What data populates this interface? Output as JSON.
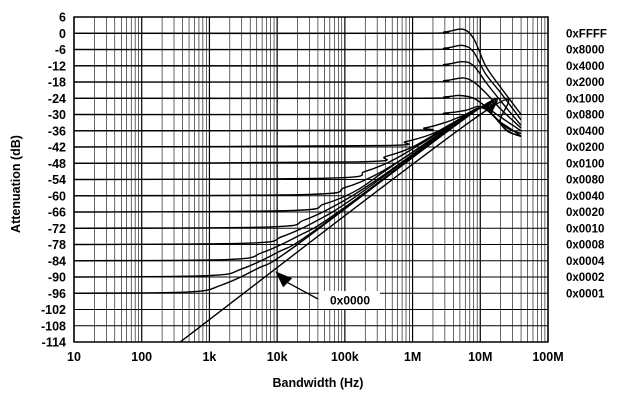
{
  "chart_data": {
    "type": "line",
    "title": "",
    "xlabel": "Bandwidth (Hz)",
    "ylabel": "Attenuation (dB)",
    "x_scale": "log",
    "xlim": [
      10,
      100000000
    ],
    "ylim": [
      -114,
      6
    ],
    "grid": true,
    "x_ticks": [
      {
        "value": 10,
        "label": "10"
      },
      {
        "value": 100,
        "label": "100"
      },
      {
        "value": 1000,
        "label": "1k"
      },
      {
        "value": 10000,
        "label": "10k"
      },
      {
        "value": 100000,
        "label": "100k"
      },
      {
        "value": 1000000,
        "label": "1M"
      },
      {
        "value": 10000000,
        "label": "10M"
      },
      {
        "value": 100000000,
        "label": "100M"
      }
    ],
    "y_ticks": [
      6,
      0,
      -6,
      -12,
      -18,
      -24,
      -30,
      -36,
      -42,
      -48,
      -54,
      -60,
      -66,
      -72,
      -78,
      -84,
      -90,
      -96,
      -102,
      -108,
      -114
    ],
    "series": [
      {
        "name": "0xFFFF",
        "values": [
          [
            10,
            0
          ],
          [
            1000000,
            0
          ],
          [
            3000000,
            0.5
          ],
          [
            5500000,
            1.5
          ],
          [
            8000000,
            -2
          ],
          [
            12000000,
            -12
          ],
          [
            20000000,
            -20
          ],
          [
            40000000,
            -30
          ]
        ]
      },
      {
        "name": "0x8000",
        "values": [
          [
            10,
            -6
          ],
          [
            1000000,
            -6
          ],
          [
            3000000,
            -5.5
          ],
          [
            5500000,
            -4.5
          ],
          [
            8000000,
            -7
          ],
          [
            12000000,
            -15
          ],
          [
            20000000,
            -22
          ],
          [
            40000000,
            -32
          ]
        ]
      },
      {
        "name": "0x4000",
        "values": [
          [
            10,
            -12
          ],
          [
            1000000,
            -12
          ],
          [
            3000000,
            -11.5
          ],
          [
            5500000,
            -10.5
          ],
          [
            8000000,
            -12
          ],
          [
            12000000,
            -18
          ],
          [
            20000000,
            -25
          ],
          [
            40000000,
            -34
          ]
        ]
      },
      {
        "name": "0x2000",
        "values": [
          [
            10,
            -18
          ],
          [
            1000000,
            -18
          ],
          [
            3000000,
            -17.5
          ],
          [
            5500000,
            -16.5
          ],
          [
            8000000,
            -18
          ],
          [
            12000000,
            -22
          ],
          [
            20000000,
            -28
          ],
          [
            40000000,
            -35
          ]
        ]
      },
      {
        "name": "0x1000",
        "values": [
          [
            10,
            -24
          ],
          [
            1000000,
            -24
          ],
          [
            3000000,
            -23.5
          ],
          [
            5000000,
            -23
          ],
          [
            8000000,
            -24
          ],
          [
            12000000,
            -27
          ],
          [
            20000000,
            -31
          ],
          [
            40000000,
            -36
          ]
        ]
      },
      {
        "name": "0x0800",
        "values": [
          [
            10,
            -30
          ],
          [
            1000000,
            -30
          ],
          [
            3000000,
            -29.5
          ],
          [
            6000000,
            -28.5
          ],
          [
            10000000,
            -27
          ],
          [
            15000000,
            -30
          ],
          [
            25000000,
            -35
          ],
          [
            40000000,
            -37
          ]
        ]
      },
      {
        "name": "0x0400",
        "values": [
          [
            10,
            -36
          ],
          [
            700000,
            -35.8
          ],
          [
            1500000,
            -35
          ],
          [
            3000000,
            -33
          ],
          [
            6000000,
            -30
          ],
          [
            10000000,
            -27.5
          ],
          [
            15000000,
            -30
          ],
          [
            25000000,
            -36
          ],
          [
            40000000,
            -38
          ]
        ]
      },
      {
        "name": "0x0200",
        "values": [
          [
            10,
            -42
          ],
          [
            300000,
            -41.5
          ],
          [
            800000,
            -40
          ],
          [
            2000000,
            -37
          ],
          [
            4000000,
            -33
          ],
          [
            10000000,
            -27.5
          ],
          [
            15000000,
            -30
          ],
          [
            25000000,
            -36
          ],
          [
            40000000,
            -38
          ]
        ]
      },
      {
        "name": "0x0100",
        "values": [
          [
            10,
            -48
          ],
          [
            150000,
            -47.5
          ],
          [
            400000,
            -45.5
          ],
          [
            1000000,
            -42
          ],
          [
            3000000,
            -35
          ],
          [
            10000000,
            -27.5
          ],
          [
            15000000,
            -30
          ],
          [
            25000000,
            -36
          ],
          [
            40000000,
            -38
          ]
        ]
      },
      {
        "name": "0x0080",
        "values": [
          [
            10,
            -54
          ],
          [
            60000,
            -53.5
          ],
          [
            200000,
            -51
          ],
          [
            500000,
            -47
          ],
          [
            1500000,
            -40
          ],
          [
            10000000,
            -27.5
          ],
          [
            15000000,
            -30
          ],
          [
            25000000,
            -36
          ],
          [
            40000000,
            -38
          ]
        ]
      },
      {
        "name": "0x0040",
        "values": [
          [
            10,
            -60
          ],
          [
            30000,
            -59.5
          ],
          [
            100000,
            -57
          ],
          [
            300000,
            -52
          ],
          [
            1000000,
            -44
          ],
          [
            10000000,
            -27.5
          ],
          [
            15000000,
            -30
          ],
          [
            25000000,
            -36
          ],
          [
            40000000,
            -38
          ]
        ]
      },
      {
        "name": "0x0020",
        "values": [
          [
            10,
            -66
          ],
          [
            15000,
            -65.5
          ],
          [
            50000,
            -63
          ],
          [
            150000,
            -58
          ],
          [
            500000,
            -49
          ],
          [
            10000000,
            -27.5
          ],
          [
            15000000,
            -30
          ],
          [
            25000000,
            -36
          ],
          [
            40000000,
            -38
          ]
        ]
      },
      {
        "name": "0x0010",
        "values": [
          [
            10,
            -72
          ],
          [
            8000,
            -71.5
          ],
          [
            25000,
            -69
          ],
          [
            80000,
            -63
          ],
          [
            300000,
            -54
          ],
          [
            10000000,
            -27.5
          ],
          [
            15000000,
            -30
          ],
          [
            25000000,
            -36
          ],
          [
            40000000,
            -38
          ]
        ]
      },
      {
        "name": "0x0008",
        "values": [
          [
            10,
            -78
          ],
          [
            4000,
            -77.5
          ],
          [
            12000,
            -75
          ],
          [
            40000,
            -69
          ],
          [
            150000,
            -60
          ],
          [
            10000000,
            -27.5
          ],
          [
            15000000,
            -30
          ],
          [
            25000000,
            -36
          ],
          [
            40000000,
            -38
          ]
        ]
      },
      {
        "name": "0x0004",
        "values": [
          [
            10,
            -84
          ],
          [
            2000,
            -83.5
          ],
          [
            6000,
            -81
          ],
          [
            20000,
            -75
          ],
          [
            80000,
            -66
          ],
          [
            10000000,
            -27.5
          ],
          [
            15000000,
            -30
          ],
          [
            25000000,
            -36
          ],
          [
            40000000,
            -38
          ]
        ]
      },
      {
        "name": "0x0002",
        "values": [
          [
            10,
            -90
          ],
          [
            1000,
            -89.5
          ],
          [
            3000,
            -87
          ],
          [
            10000,
            -81
          ],
          [
            40000,
            -72
          ],
          [
            10000000,
            -27.5
          ],
          [
            15000000,
            -30
          ],
          [
            25000000,
            -36
          ],
          [
            40000000,
            -38
          ]
        ]
      },
      {
        "name": "0x0001",
        "values": [
          [
            10,
            -96
          ],
          [
            500,
            -95.5
          ],
          [
            1500,
            -93
          ],
          [
            5000,
            -87
          ],
          [
            20000,
            -78
          ],
          [
            10000000,
            -27.5
          ],
          [
            15000000,
            -30
          ],
          [
            25000000,
            -36
          ],
          [
            40000000,
            -38
          ]
        ]
      },
      {
        "name": "0x0000",
        "values": [
          [
            370,
            -114
          ],
          [
            10000000,
            -30
          ],
          [
            20000000,
            -33
          ],
          [
            40000000,
            -38
          ]
        ]
      }
    ],
    "right_labels": [
      {
        "text": "0xFFFF",
        "y": 0
      },
      {
        "text": "0x8000",
        "y": -6
      },
      {
        "text": "0x4000",
        "y": -12
      },
      {
        "text": "0x2000",
        "y": -18
      },
      {
        "text": "0x1000",
        "y": -24
      },
      {
        "text": "0x0800",
        "y": -30
      },
      {
        "text": "0x0400",
        "y": -36
      },
      {
        "text": "0x0200",
        "y": -42
      },
      {
        "text": "0x0100",
        "y": -48
      },
      {
        "text": "0x0080",
        "y": -54
      },
      {
        "text": "0x0040",
        "y": -60
      },
      {
        "text": "0x0020",
        "y": -66
      },
      {
        "text": "0x0010",
        "y": -72
      },
      {
        "text": "0x0008",
        "y": -78
      },
      {
        "text": "0x0004",
        "y": -84
      },
      {
        "text": "0x0002",
        "y": -90
      },
      {
        "text": "0x0001",
        "y": -96
      }
    ],
    "annotations": [
      {
        "text": "0x0000",
        "x": 10000,
        "y": -89
      }
    ]
  }
}
